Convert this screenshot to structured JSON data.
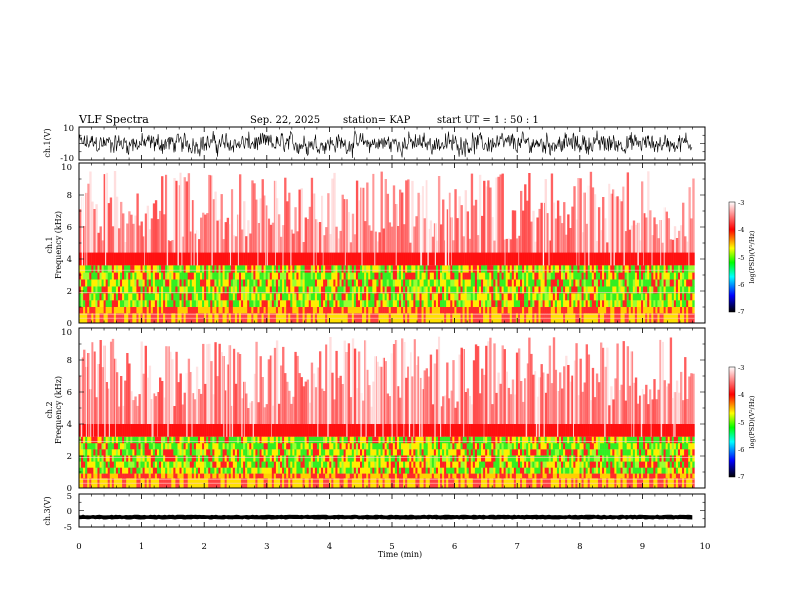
{
  "header": {
    "title": "VLF Spectra",
    "date": "Sep. 22, 2025",
    "station": "station= KAP",
    "start": "start  UT =   1 : 50 : 1"
  },
  "colors": {
    "background": "#ffffff",
    "axis": "#000000",
    "signal": "#000000",
    "colormap": [
      "#ffffff",
      "#ff0000",
      "#ffff00",
      "#00ff00",
      "#00ffff",
      "#0000ff",
      "#000000"
    ]
  },
  "chart_data": [
    {
      "type": "line",
      "name": "ch1-waveform",
      "ylabel": "ch.1(V)",
      "ylim": [
        -10,
        10
      ],
      "yticks": [
        "10",
        "-10"
      ],
      "xlim": [
        0,
        10
      ],
      "amplitude_volts": 7
    },
    {
      "type": "heatmap",
      "name": "ch1-spectrogram",
      "ylabel": "ch.1\nFrequency  (kHz)",
      "ylim": [
        0,
        10
      ],
      "yticks": [
        "0",
        "2",
        "4",
        "6",
        "8",
        "10"
      ],
      "xlim": [
        0,
        9.83
      ],
      "bands_khz": [
        [
          1.0,
          3.6
        ],
        [
          0.2,
          0.6
        ]
      ],
      "colorbar": {
        "label": "log(PSD)(V²/Hz)",
        "range": [
          -7,
          -3
        ],
        "ticks": [
          "-3",
          "-4",
          "-5",
          "-6",
          "-7"
        ]
      }
    },
    {
      "type": "heatmap",
      "name": "ch2-spectrogram",
      "ylabel": "ch.2\nFrequency  (kHz)",
      "ylim": [
        0,
        10
      ],
      "yticks": [
        "0",
        "2",
        "4",
        "6",
        "8",
        "10"
      ],
      "xlim": [
        0,
        9.83
      ],
      "bands_khz": [
        [
          0.9,
          3.2
        ],
        [
          0.2,
          0.6
        ]
      ],
      "colorbar": {
        "label": "log(PSD)(V²/Hz)",
        "range": [
          -7,
          -3
        ],
        "ticks": [
          "-3",
          "-4",
          "-5",
          "-6",
          "-7"
        ]
      }
    },
    {
      "type": "line",
      "name": "ch3-waveform",
      "ylabel": "ch.3(V)",
      "ylim": [
        -5,
        5
      ],
      "yticks": [
        "5",
        "0",
        "-5"
      ],
      "xlim": [
        0,
        10
      ],
      "offset_volts": -2,
      "amplitude_volts": 0.4
    }
  ],
  "xaxis": {
    "label": "Time  (min)",
    "ticks": [
      "0",
      "1",
      "2",
      "3",
      "4",
      "5",
      "6",
      "7",
      "8",
      "9",
      "10"
    ],
    "range": [
      0,
      10
    ]
  }
}
